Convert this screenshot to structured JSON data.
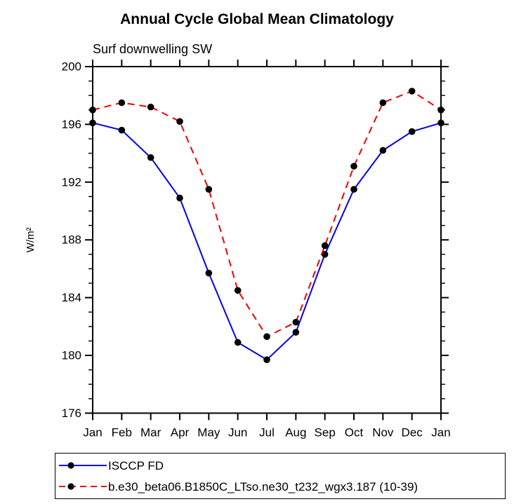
{
  "chart_data": {
    "type": "line",
    "title": "Annual Cycle Global Mean Climatology",
    "subtitle": "Surf downwelling SW",
    "ylabel": "W/m²",
    "xlabel": "",
    "categories": [
      "Jan",
      "Feb",
      "Mar",
      "Apr",
      "May",
      "Jun",
      "Jul",
      "Aug",
      "Sep",
      "Oct",
      "Nov",
      "Dec",
      "Jan"
    ],
    "series": [
      {
        "name": "ISCCP FD",
        "color": "#0000ee",
        "line_style": "solid",
        "values": [
          196.1,
          195.6,
          193.7,
          190.9,
          185.7,
          180.9,
          179.7,
          181.6,
          187.0,
          191.5,
          194.2,
          195.5,
          196.1
        ]
      },
      {
        "name": "b.e30_beta06.B1850C_LTso.ne30_t232_wgx3.187 (10-39)",
        "color": "#f00000",
        "line_style": "dashed",
        "values": [
          197.0,
          197.5,
          197.2,
          196.2,
          191.5,
          184.5,
          181.3,
          182.3,
          187.6,
          193.1,
          197.5,
          198.3,
          197.0
        ]
      }
    ],
    "ylim": [
      176,
      200
    ],
    "y_major_step": 4,
    "y_minor_step": 1,
    "y_tick_labels": [
      "176",
      "180",
      "184",
      "188",
      "192",
      "196",
      "200"
    ],
    "grid": false,
    "legend_position": "bottom",
    "marker": {
      "shape": "circle",
      "color": "#000000"
    },
    "axis_color": "#000000"
  }
}
